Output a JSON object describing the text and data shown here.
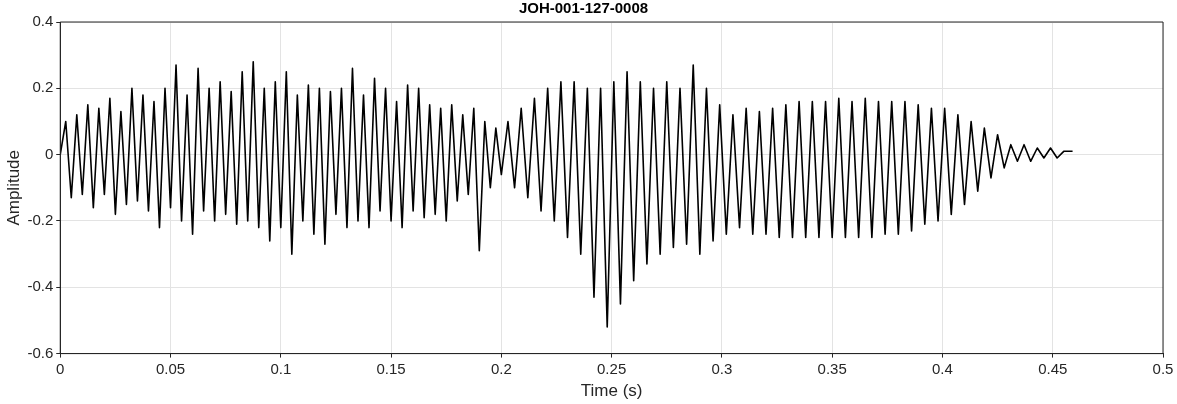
{
  "chart_data": {
    "type": "line",
    "title": "JOH-001-127-0008",
    "xlabel": "Time (s)",
    "ylabel": "Amplitude",
    "color": "#000000",
    "grid": true,
    "marker": "none",
    "line_style": "solid",
    "xlim": [
      0,
      0.5
    ],
    "xticks": [
      0,
      0.05,
      0.1,
      0.15,
      0.2,
      0.25,
      0.3,
      0.35,
      0.4,
      0.45,
      0.5
    ],
    "ylim": [
      -0.6,
      0.4
    ],
    "yticks": [
      -0.6,
      -0.4,
      -0.2,
      0,
      0.2,
      0.4
    ],
    "x": [
      0,
      0.0025,
      0.005,
      0.0075,
      0.01,
      0.0125,
      0.015,
      0.0175,
      0.02,
      0.0225,
      0.025,
      0.0275,
      0.03,
      0.0325,
      0.035,
      0.0375,
      0.04,
      0.0425,
      0.045,
      0.0475,
      0.05,
      0.0525,
      0.055,
      0.0575,
      0.06,
      0.0625,
      0.065,
      0.0675,
      0.07,
      0.0725,
      0.075,
      0.0775,
      0.08,
      0.0825,
      0.085,
      0.0875,
      0.09,
      0.0925,
      0.095,
      0.0975,
      0.1,
      0.1025,
      0.105,
      0.1075,
      0.11,
      0.1125,
      0.115,
      0.1175,
      0.12,
      0.1225,
      0.125,
      0.1275,
      0.13,
      0.1325,
      0.135,
      0.1375,
      0.14,
      0.1425,
      0.145,
      0.1475,
      0.15,
      0.1525,
      0.155,
      0.1575,
      0.16,
      0.1625,
      0.165,
      0.1675,
      0.17,
      0.1725,
      0.175,
      0.1775,
      0.18,
      0.1825,
      0.185,
      0.1875,
      0.19,
      0.1925,
      0.195,
      0.1975,
      0.2,
      0.203,
      0.206,
      0.209,
      0.212,
      0.215,
      0.218,
      0.221,
      0.224,
      0.227,
      0.23,
      0.233,
      0.236,
      0.239,
      0.242,
      0.245,
      0.248,
      0.251,
      0.254,
      0.257,
      0.26,
      0.263,
      0.266,
      0.269,
      0.272,
      0.275,
      0.278,
      0.281,
      0.284,
      0.287,
      0.29,
      0.293,
      0.296,
      0.299,
      0.302,
      0.305,
      0.308,
      0.311,
      0.314,
      0.317,
      0.32,
      0.323,
      0.326,
      0.329,
      0.332,
      0.335,
      0.338,
      0.341,
      0.344,
      0.347,
      0.35,
      0.353,
      0.356,
      0.359,
      0.362,
      0.365,
      0.368,
      0.371,
      0.374,
      0.377,
      0.38,
      0.383,
      0.386,
      0.389,
      0.392,
      0.395,
      0.398,
      0.401,
      0.404,
      0.407,
      0.41,
      0.413,
      0.416,
      0.419,
      0.422,
      0.425,
      0.428,
      0.431,
      0.434,
      0.437,
      0.44,
      0.443,
      0.446,
      0.449,
      0.452,
      0.455,
      0.459
    ],
    "values": [
      0,
      0.1,
      -0.13,
      0.12,
      -0.12,
      0.15,
      -0.16,
      0.14,
      -0.12,
      0.17,
      -0.18,
      0.13,
      -0.15,
      0.2,
      -0.14,
      0.18,
      -0.17,
      0.16,
      -0.22,
      0.2,
      -0.16,
      0.27,
      -0.2,
      0.18,
      -0.24,
      0.26,
      -0.17,
      0.2,
      -0.2,
      0.22,
      -0.18,
      0.19,
      -0.21,
      0.25,
      -0.2,
      0.28,
      -0.22,
      0.2,
      -0.26,
      0.22,
      -0.22,
      0.25,
      -0.3,
      0.18,
      -0.2,
      0.21,
      -0.24,
      0.2,
      -0.27,
      0.19,
      -0.18,
      0.2,
      -0.22,
      0.26,
      -0.2,
      0.18,
      -0.22,
      0.23,
      -0.17,
      0.2,
      -0.2,
      0.16,
      -0.22,
      0.21,
      -0.17,
      0.2,
      -0.19,
      0.15,
      -0.18,
      0.14,
      -0.2,
      0.15,
      -0.14,
      0.12,
      -0.12,
      0.14,
      -0.29,
      0.1,
      -0.1,
      0.08,
      -0.06,
      0.1,
      -0.1,
      0.14,
      -0.13,
      0.17,
      -0.17,
      0.2,
      -0.2,
      0.22,
      -0.25,
      0.22,
      -0.3,
      0.2,
      -0.43,
      0.2,
      -0.52,
      0.22,
      -0.45,
      0.25,
      -0.38,
      0.22,
      -0.33,
      0.2,
      -0.3,
      0.22,
      -0.28,
      0.2,
      -0.27,
      0.27,
      -0.3,
      0.2,
      -0.26,
      0.15,
      -0.24,
      0.12,
      -0.22,
      0.14,
      -0.24,
      0.13,
      -0.24,
      0.14,
      -0.25,
      0.15,
      -0.25,
      0.16,
      -0.25,
      0.16,
      -0.25,
      0.16,
      -0.25,
      0.17,
      -0.25,
      0.16,
      -0.25,
      0.17,
      -0.25,
      0.16,
      -0.24,
      0.16,
      -0.24,
      0.16,
      -0.23,
      0.15,
      -0.21,
      0.14,
      -0.2,
      0.14,
      -0.18,
      0.12,
      -0.15,
      0.1,
      -0.11,
      0.08,
      -0.07,
      0.06,
      -0.04,
      0.03,
      -0.02,
      0.03,
      -0.02,
      0.02,
      -0.01,
      0.02,
      -0.01,
      0.01,
      0.01
    ]
  }
}
